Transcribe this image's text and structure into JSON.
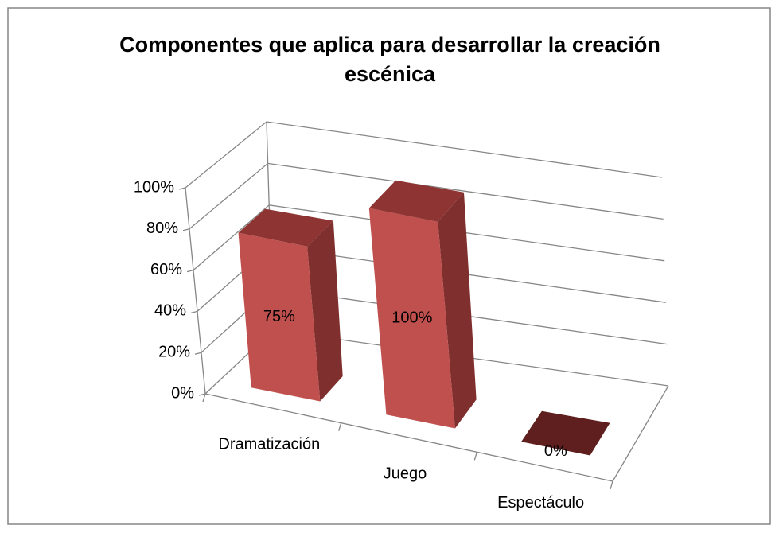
{
  "chart_data": {
    "type": "bar3d",
    "title": "Componentes que aplica para desarrollar la creación escénica",
    "categories": [
      "Dramatización",
      "Juego",
      "Espectáculo"
    ],
    "values": [
      75,
      100,
      0
    ],
    "value_labels": [
      "75%",
      "100%",
      "0%"
    ],
    "color": "#c0504d",
    "ylim": [
      0,
      100
    ],
    "yticks": [
      {
        "value": 0,
        "label": "0%"
      },
      {
        "value": 20,
        "label": "20%"
      },
      {
        "value": 40,
        "label": "40%"
      },
      {
        "value": 60,
        "label": "60%"
      },
      {
        "value": 80,
        "label": "80%"
      },
      {
        "value": 100,
        "label": "100%"
      }
    ],
    "grid": true
  }
}
